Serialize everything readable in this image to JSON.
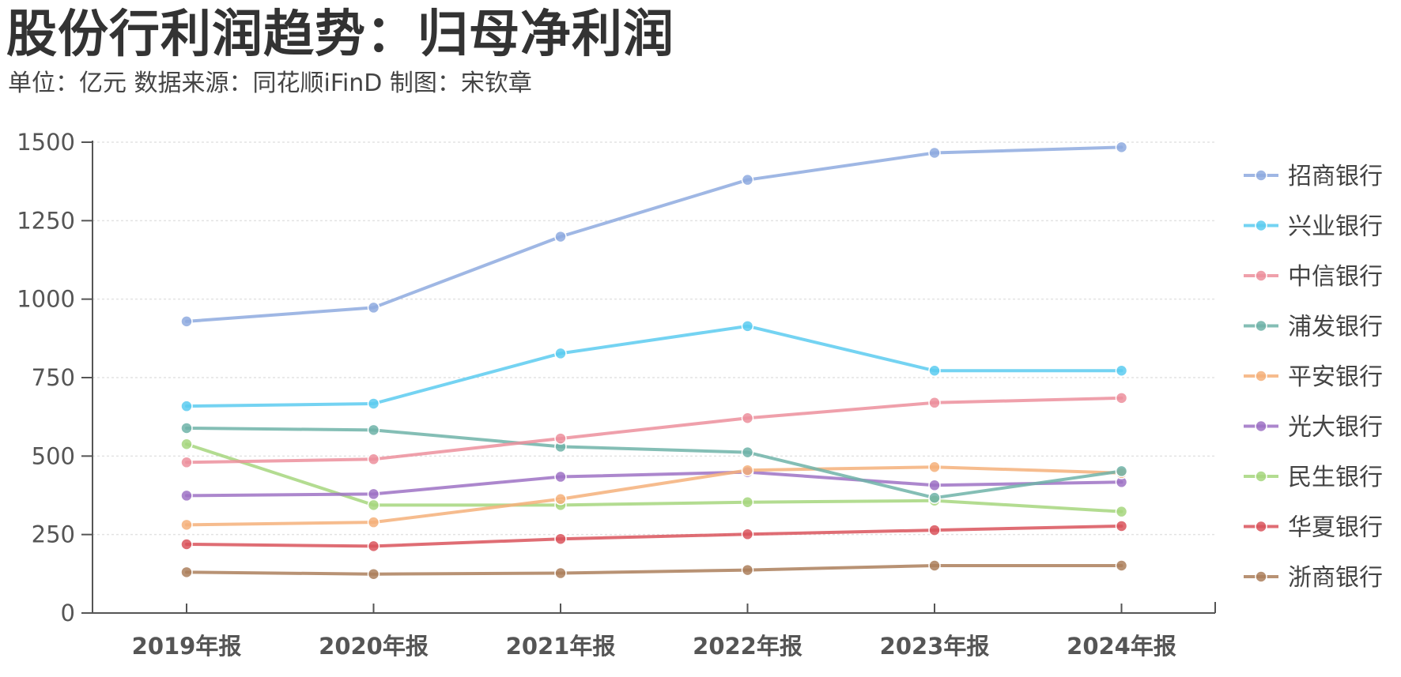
{
  "title": "股份行利润趋势：归母净利润",
  "subtitle": "单位：亿元    数据来源：同花顺iFinD    制图：宋钦章",
  "chart_data": {
    "type": "line",
    "title": "股份行利润趋势：归母净利润",
    "xlabel": "",
    "ylabel": "亿元",
    "ylim": [
      0,
      1500
    ],
    "yticks": [
      0,
      250,
      500,
      750,
      1000,
      1250,
      1500
    ],
    "grid": true,
    "legend_position": "right",
    "categories": [
      "2019年报",
      "2020年报",
      "2021年报",
      "2022年报",
      "2023年报",
      "2024年报"
    ],
    "series": [
      {
        "name": "招商银行",
        "color": "#8eaadf",
        "values": [
          929,
          973,
          1199,
          1380,
          1466,
          1484
        ]
      },
      {
        "name": "兴业银行",
        "color": "#5ccbf0",
        "values": [
          659,
          667,
          827,
          914,
          772,
          772
        ]
      },
      {
        "name": "中信银行",
        "color": "#ec8f9c",
        "values": [
          480,
          490,
          556,
          621,
          670,
          685
        ]
      },
      {
        "name": "浦发银行",
        "color": "#6fb3a8",
        "values": [
          589,
          583,
          530,
          512,
          367,
          452
        ]
      },
      {
        "name": "平安银行",
        "color": "#f5b07a",
        "values": [
          281,
          289,
          363,
          455,
          465,
          446
        ]
      },
      {
        "name": "光大银行",
        "color": "#9e72c4",
        "values": [
          374,
          379,
          434,
          449,
          407,
          417
        ]
      },
      {
        "name": "民生银行",
        "color": "#a6d67e",
        "values": [
          538,
          344,
          344,
          353,
          358,
          323
        ]
      },
      {
        "name": "华夏银行",
        "color": "#d9535c",
        "values": [
          219,
          213,
          236,
          251,
          264,
          277
        ]
      },
      {
        "name": "浙商银行",
        "color": "#ab7f5c",
        "values": [
          130,
          124,
          127,
          137,
          151,
          151
        ]
      }
    ]
  }
}
